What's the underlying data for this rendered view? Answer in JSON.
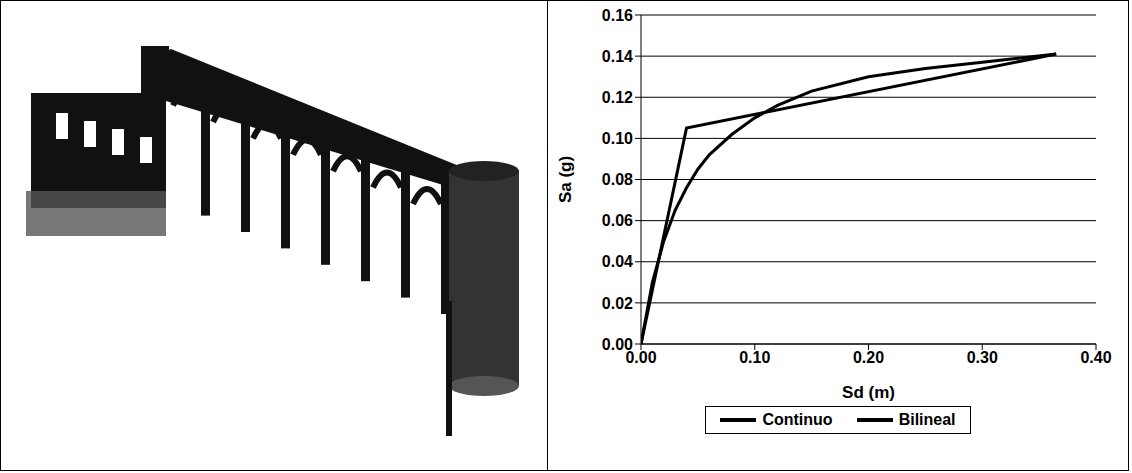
{
  "chart_data": {
    "type": "line",
    "xlabel": "Sd (m)",
    "ylabel": "Sa (g)",
    "xlim": [
      0,
      0.4
    ],
    "ylim": [
      0,
      0.16
    ],
    "xticks": [
      {
        "value": 0,
        "label": "0.00"
      },
      {
        "value": 0.1,
        "label": "0.10"
      },
      {
        "value": 0.2,
        "label": "0.20"
      },
      {
        "value": 0.3,
        "label": "0.30"
      },
      {
        "value": 0.4,
        "label": "0.40"
      }
    ],
    "yticks": [
      {
        "value": 0,
        "label": "0.00"
      },
      {
        "value": 0.02,
        "label": "0.02"
      },
      {
        "value": 0.04,
        "label": "0.04"
      },
      {
        "value": 0.06,
        "label": "0.06"
      },
      {
        "value": 0.08,
        "label": "0.08"
      },
      {
        "value": 0.1,
        "label": "0.10"
      },
      {
        "value": 0.12,
        "label": "0.12"
      },
      {
        "value": 0.14,
        "label": "0.14"
      },
      {
        "value": 0.16,
        "label": "0.16"
      }
    ],
    "grid": true,
    "legend": "bottom",
    "series": [
      {
        "name": "Continuo",
        "color": "#000000",
        "x": [
          0,
          0.01,
          0.02,
          0.03,
          0.04,
          0.05,
          0.06,
          0.08,
          0.1,
          0.12,
          0.15,
          0.2,
          0.25,
          0.3,
          0.365
        ],
        "values": [
          0,
          0.03,
          0.05,
          0.065,
          0.076,
          0.085,
          0.092,
          0.102,
          0.11,
          0.116,
          0.123,
          0.13,
          0.134,
          0.137,
          0.141
        ]
      },
      {
        "name": "Bilineal",
        "color": "#000000",
        "x": [
          0,
          0.04,
          0.365
        ],
        "values": [
          0,
          0.105,
          0.141
        ]
      }
    ]
  }
}
